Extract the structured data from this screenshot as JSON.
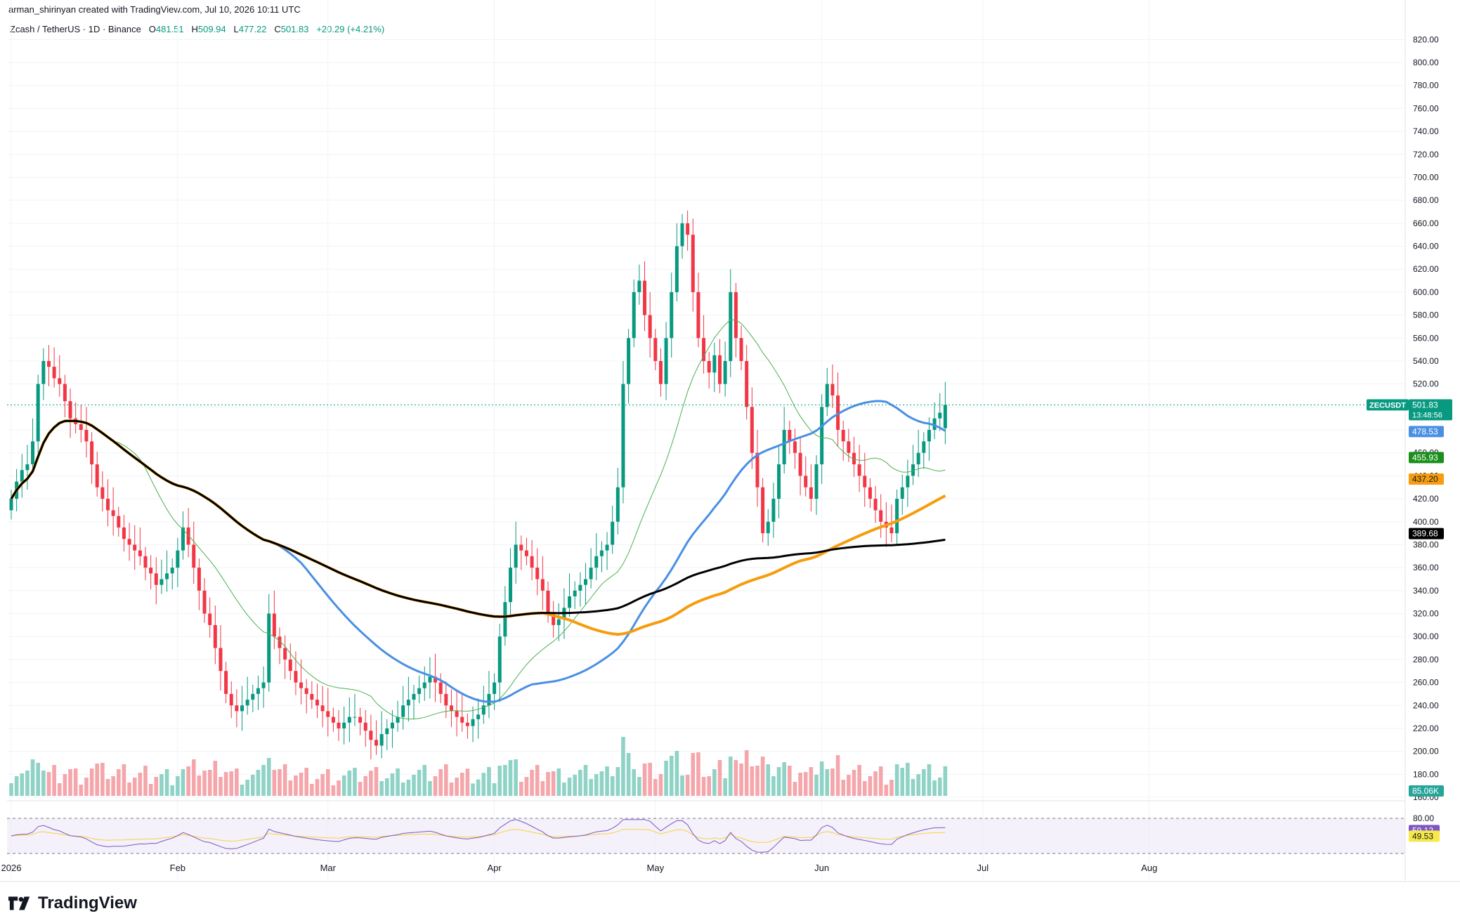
{
  "header": {
    "created_by": "arman_shirinyan created with TradingView.com, Jul 10, 2026 10:11 UTC"
  },
  "symbol": {
    "name": "Zcash / TetherUS · 1D · Binance",
    "open_label": "O",
    "open": "481.51",
    "high_label": "H",
    "high": "509.94",
    "low_label": "L",
    "low": "477.22",
    "close_label": "C",
    "close": "501.83",
    "change": "+20.29 (+4.21%)"
  },
  "brand": {
    "name": "TradingView"
  },
  "colors": {
    "up": "#089981",
    "down": "#f23645",
    "ma_blue": "#4a8fe3",
    "ma_orange": "#f59d0f",
    "ma_black": "#000000",
    "ma_green": "#4caf50",
    "rsi_line": "#7e57c2",
    "rsi_ma": "#f7d23f",
    "volume_up": "#8fd2c6",
    "volume_down": "#f4a6ab"
  },
  "price_labels": [
    {
      "text": "ZECUSDT",
      "sub": "",
      "value": 501.83,
      "bg": "#089981",
      "fg": "#ffffff"
    },
    {
      "text": "501.83",
      "sub": "13:48:56",
      "value": 501.83,
      "bg": "#089981",
      "fg": "#ffffff"
    },
    {
      "text": "478.53",
      "sub": "",
      "value": 478.53,
      "bg": "#4a8fe3",
      "fg": "#ffffff"
    },
    {
      "text": "455.93",
      "sub": "",
      "value": 455.93,
      "bg": "#1b8f1b",
      "fg": "#ffffff"
    },
    {
      "text": "437.20",
      "sub": "",
      "value": 437.2,
      "bg": "#f59d0f",
      "fg": "#131722"
    },
    {
      "text": "389.68",
      "sub": "",
      "value": 389.68,
      "bg": "#000000",
      "fg": "#ffffff"
    }
  ],
  "volume_label": {
    "text": "85.06K",
    "bg": "#26a69a"
  },
  "rsi_labels": [
    {
      "text": "59.12",
      "value": 59.12,
      "bg": "#7e57c2",
      "fg": "#ffffff"
    },
    {
      "text": "49.53",
      "value": 49.53,
      "bg": "#f7e94a",
      "fg": "#131722"
    }
  ],
  "chart_data": {
    "type": "candlestick",
    "title": "Zcash / TetherUS · 1D · Binance",
    "ylim": [
      160,
      830
    ],
    "y_ticks": [
      160,
      180,
      200,
      220,
      240,
      260,
      280,
      300,
      320,
      340,
      360,
      380,
      400,
      420,
      440,
      460,
      480,
      500,
      520,
      540,
      560,
      580,
      600,
      620,
      640,
      660,
      680,
      700,
      720,
      740,
      760,
      780,
      800,
      820
    ],
    "y_tick_labels": [
      "160.00",
      "180.00",
      "200.00",
      "220.00",
      "240.00",
      "260.00",
      "280.00",
      "300.00",
      "320.00",
      "340.00",
      "360.00",
      "380.00",
      "400.00",
      "420.00",
      "440.00",
      "460.00",
      "480.00",
      "500.00",
      "520.00",
      "540.00",
      "560.00",
      "580.00",
      "600.00",
      "620.00",
      "640.00",
      "660.00",
      "680.00",
      "700.00",
      "720.00",
      "740.00",
      "760.00",
      "780.00",
      "800.00",
      "820.00"
    ],
    "x_labels": [
      {
        "label": "2026",
        "day": 1
      },
      {
        "label": "Feb",
        "day": 32
      },
      {
        "label": "Mar",
        "day": 60
      },
      {
        "label": "Apr",
        "day": 91
      },
      {
        "label": "May",
        "day": 121
      },
      {
        "label": "Jun",
        "day": 152
      },
      {
        "label": "Jul",
        "day": 182
      },
      {
        "label": "Aug",
        "day": 213
      }
    ],
    "rsi": {
      "upper": 80,
      "lower": 20,
      "mid": 50,
      "upper_label": "80.00",
      "value": 59.12,
      "ma": 49.53
    },
    "close_series": [
      420,
      435,
      445,
      450,
      470,
      520,
      540,
      535,
      525,
      520,
      505,
      490,
      485,
      480,
      470,
      450,
      430,
      420,
      410,
      405,
      395,
      385,
      380,
      375,
      370,
      360,
      355,
      345,
      350,
      355,
      360,
      375,
      395,
      380,
      360,
      340,
      320,
      310,
      290,
      270,
      250,
      240,
      235,
      240,
      245,
      250,
      255,
      260,
      320,
      300,
      290,
      280,
      270,
      260,
      255,
      250,
      245,
      240,
      235,
      230,
      225,
      220,
      225,
      230,
      230,
      225,
      218,
      210,
      205,
      215,
      220,
      225,
      230,
      240,
      245,
      250,
      255,
      260,
      265,
      260,
      250,
      240,
      235,
      230,
      225,
      222,
      228,
      232,
      240,
      250,
      260,
      300,
      330,
      360,
      380,
      375,
      370,
      360,
      350,
      340,
      320,
      310,
      315,
      325,
      335,
      340,
      345,
      350,
      360,
      370,
      375,
      380,
      400,
      430,
      520,
      560,
      600,
      610,
      580,
      560,
      540,
      520,
      560,
      600,
      640,
      660,
      650,
      600,
      560,
      540,
      530,
      545,
      520,
      540,
      600,
      560,
      540,
      500,
      460,
      430,
      390,
      400,
      420,
      450,
      480,
      470,
      460,
      440,
      430,
      420,
      450,
      500,
      520,
      510,
      480,
      470,
      460,
      450,
      440,
      430,
      420,
      410,
      400,
      395,
      390,
      420,
      430,
      440,
      450,
      460,
      470,
      480,
      490,
      495,
      501.83
    ],
    "open_series": [
      410,
      420,
      435,
      445,
      450,
      470,
      520,
      540,
      535,
      525,
      520,
      505,
      490,
      485,
      480,
      470,
      450,
      430,
      420,
      410,
      405,
      395,
      385,
      380,
      375,
      370,
      360,
      355,
      345,
      350,
      355,
      360,
      375,
      395,
      380,
      360,
      340,
      320,
      310,
      290,
      270,
      250,
      240,
      235,
      240,
      245,
      250,
      255,
      260,
      320,
      300,
      290,
      280,
      270,
      260,
      255,
      250,
      245,
      240,
      235,
      230,
      225,
      220,
      225,
      230,
      230,
      225,
      218,
      210,
      205,
      215,
      220,
      225,
      230,
      240,
      245,
      250,
      255,
      260,
      265,
      260,
      250,
      240,
      235,
      230,
      225,
      222,
      228,
      232,
      240,
      250,
      260,
      300,
      330,
      360,
      380,
      375,
      370,
      360,
      350,
      340,
      320,
      310,
      315,
      325,
      335,
      340,
      345,
      350,
      360,
      370,
      375,
      380,
      400,
      430,
      520,
      560,
      600,
      610,
      580,
      560,
      540,
      520,
      560,
      600,
      640,
      660,
      650,
      600,
      560,
      540,
      530,
      545,
      520,
      540,
      600,
      560,
      540,
      500,
      460,
      430,
      390,
      400,
      420,
      450,
      480,
      470,
      460,
      440,
      430,
      420,
      450,
      500,
      520,
      510,
      480,
      470,
      460,
      450,
      440,
      430,
      420,
      410,
      400,
      395,
      390,
      420,
      430,
      440,
      450,
      460,
      470,
      480,
      490,
      481.51
    ]
  }
}
